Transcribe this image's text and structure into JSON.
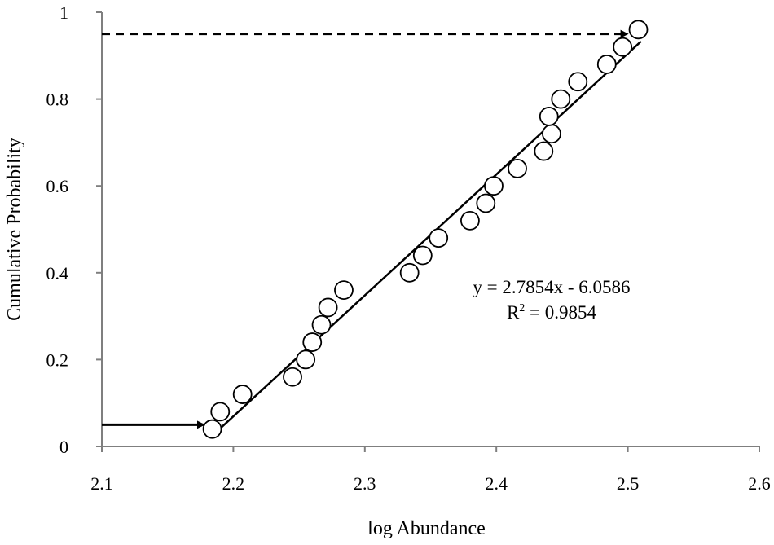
{
  "chart_data": {
    "type": "scatter",
    "title": "",
    "xlabel": "log Abundance",
    "ylabel": "Cumulative Probability",
    "xlim": [
      2.1,
      2.6
    ],
    "ylim": [
      0,
      1
    ],
    "x_ticks": [
      "2.1",
      "2.2",
      "2.3",
      "2.4",
      "2.5",
      "2.6"
    ],
    "y_ticks": [
      "0",
      "0.2",
      "0.4",
      "0.6",
      "0.8",
      "1"
    ],
    "grid": false,
    "legend": "none",
    "series": [
      {
        "marker": "open-circle",
        "points": [
          {
            "x": 2.184,
            "y": 0.04
          },
          {
            "x": 2.19,
            "y": 0.08
          },
          {
            "x": 2.207,
            "y": 0.12
          },
          {
            "x": 2.245,
            "y": 0.16
          },
          {
            "x": 2.255,
            "y": 0.2
          },
          {
            "x": 2.26,
            "y": 0.24
          },
          {
            "x": 2.267,
            "y": 0.28
          },
          {
            "x": 2.272,
            "y": 0.32
          },
          {
            "x": 2.284,
            "y": 0.36
          },
          {
            "x": 2.334,
            "y": 0.4
          },
          {
            "x": 2.344,
            "y": 0.44
          },
          {
            "x": 2.356,
            "y": 0.48
          },
          {
            "x": 2.38,
            "y": 0.52
          },
          {
            "x": 2.392,
            "y": 0.56
          },
          {
            "x": 2.398,
            "y": 0.6
          },
          {
            "x": 2.416,
            "y": 0.64
          },
          {
            "x": 2.436,
            "y": 0.68
          },
          {
            "x": 2.442,
            "y": 0.72
          },
          {
            "x": 2.44,
            "y": 0.76
          },
          {
            "x": 2.449,
            "y": 0.8
          },
          {
            "x": 2.462,
            "y": 0.84
          },
          {
            "x": 2.484,
            "y": 0.88
          },
          {
            "x": 2.496,
            "y": 0.92
          },
          {
            "x": 2.508,
            "y": 0.96
          }
        ]
      }
    ],
    "trendline": {
      "slope": 2.7854,
      "intercept": -6.0586,
      "x_range": [
        2.185,
        2.51
      ],
      "equation_label": "y = 2.7854x - 6.0586",
      "r2_label_prefix": "R",
      "r2_label_sup": "2",
      "r2_label_value": " = 0.9854"
    },
    "annotations": [
      {
        "kind": "solid-arrow",
        "from": {
          "x": 2.1,
          "y": 0.05
        },
        "to": {
          "x": 2.178,
          "y": 0.05
        }
      },
      {
        "kind": "dashed-arrow",
        "from": {
          "x": 2.1,
          "y": 0.95
        },
        "to": {
          "x": 2.5,
          "y": 0.95
        }
      }
    ]
  }
}
